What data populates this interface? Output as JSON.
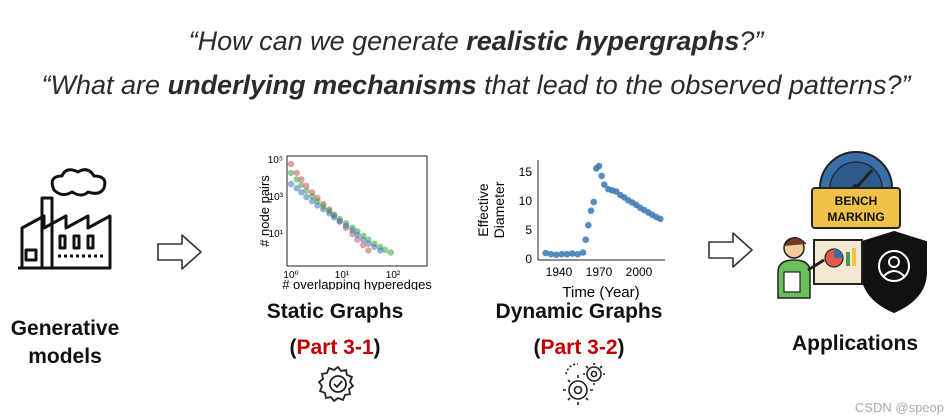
{
  "questions": {
    "q1": {
      "pre": "“How can we generate ",
      "bold": "realistic hypergraphs",
      "post": "?”"
    },
    "q2": {
      "pre": "“What are ",
      "bold": "underlying mechanisms",
      "post": " that lead to the observed patterns?”"
    }
  },
  "left": {
    "line1": "Generative",
    "line2": "models"
  },
  "static": {
    "title": "Static Graphs",
    "part_open": "(",
    "part": "Part 3-1",
    "part_close": ")"
  },
  "dynamic": {
    "title": "Dynamic Graphs",
    "part_open": "(",
    "part": "Part 3-2",
    "part_close": ")"
  },
  "applications": {
    "label": "Applications",
    "bench1": "BENCH",
    "bench2": "MARKING"
  },
  "watermark": "CSDN @speop",
  "colors": {
    "red": "#c00000",
    "blue": "#3a78b5",
    "green": "#3aa040",
    "pink": "#d0505a"
  },
  "chart_data": [
    {
      "type": "scatter",
      "xlabel": "# overlapping hyperedges",
      "ylabel": "# node pairs",
      "xscale": "log",
      "yscale": "log",
      "xticks": [
        "10⁰",
        "10¹",
        "10²"
      ],
      "yticks": [
        "10⁵",
        "10³",
        "10¹"
      ],
      "series": [
        {
          "color": "#d0505a",
          "points": [
            [
              1,
              60000
            ],
            [
              1.3,
              20000
            ],
            [
              1.6,
              9000
            ],
            [
              2,
              4000
            ],
            [
              2.6,
              1800
            ],
            [
              3.3,
              900
            ],
            [
              4.3,
              420
            ],
            [
              5.6,
              210
            ],
            [
              7,
              100
            ],
            [
              9,
              48
            ],
            [
              12,
              22
            ],
            [
              16,
              10
            ],
            [
              20,
              5
            ],
            [
              26,
              2.5
            ],
            [
              33,
              1.3
            ]
          ]
        },
        {
          "color": "#3aa040",
          "points": [
            [
              1,
              20000
            ],
            [
              1.3,
              9000
            ],
            [
              1.6,
              4500
            ],
            [
              2,
              2200
            ],
            [
              2.6,
              1100
            ],
            [
              3.3,
              600
            ],
            [
              4.3,
              320
            ],
            [
              5.6,
              180
            ],
            [
              7,
              110
            ],
            [
              9,
              65
            ],
            [
              12,
              38
            ],
            [
              16,
              22
            ],
            [
              20,
              14
            ],
            [
              26,
              8
            ],
            [
              33,
              5
            ],
            [
              43,
              3
            ],
            [
              56,
              2
            ],
            [
              70,
              1.4
            ],
            [
              90,
              1
            ]
          ]
        },
        {
          "color": "#3a78b5",
          "points": [
            [
              1,
              5000
            ],
            [
              1.3,
              3000
            ],
            [
              1.6,
              1800
            ],
            [
              2,
              1000
            ],
            [
              2.6,
              600
            ],
            [
              3.3,
              350
            ],
            [
              4.3,
              220
            ],
            [
              5.6,
              130
            ],
            [
              7,
              80
            ],
            [
              9,
              48
            ],
            [
              12,
              28
            ],
            [
              16,
              16
            ],
            [
              20,
              9
            ],
            [
              26,
              5
            ],
            [
              33,
              3
            ],
            [
              43,
              2
            ],
            [
              56,
              1.3
            ]
          ]
        }
      ]
    },
    {
      "type": "scatter",
      "xlabel": "Time (Year)",
      "ylabel": "Effective Diameter",
      "xticks": [
        "1940",
        "1970",
        "2000"
      ],
      "yticks": [
        "0",
        "5",
        "10",
        "15"
      ],
      "xlim": [
        1925,
        2020
      ],
      "ylim": [
        0,
        17
      ],
      "series": [
        {
          "color": "#3a78b5",
          "points": [
            [
              1930,
              1.2
            ],
            [
              1934,
              1.0
            ],
            [
              1938,
              0.9
            ],
            [
              1942,
              1.0
            ],
            [
              1946,
              1.0
            ],
            [
              1950,
              1.1
            ],
            [
              1954,
              1.0
            ],
            [
              1958,
              1.3
            ],
            [
              1960,
              3.5
            ],
            [
              1962,
              6.0
            ],
            [
              1964,
              8.5
            ],
            [
              1966,
              10.0
            ],
            [
              1968,
              15.8
            ],
            [
              1970,
              16.2
            ],
            [
              1972,
              14.5
            ],
            [
              1974,
              13.0
            ],
            [
              1977,
              12.2
            ],
            [
              1980,
              12.0
            ],
            [
              1983,
              11.8
            ],
            [
              1986,
              11.2
            ],
            [
              1989,
              10.8
            ],
            [
              1992,
              10.3
            ],
            [
              1995,
              9.9
            ],
            [
              1998,
              9.5
            ],
            [
              2001,
              9.0
            ],
            [
              2004,
              8.6
            ],
            [
              2007,
              8.2
            ],
            [
              2010,
              7.8
            ],
            [
              2013,
              7.4
            ],
            [
              2016,
              7.1
            ]
          ]
        }
      ]
    }
  ]
}
